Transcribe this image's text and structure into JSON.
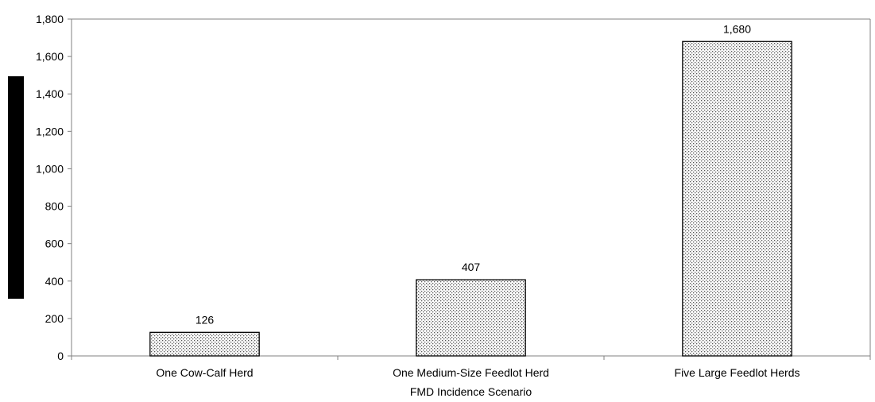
{
  "chart_data": {
    "type": "bar",
    "categories": [
      "One Cow-Calf Herd",
      "One Medium-Size Feedlot Herd",
      "Five Large Feedlot Herds"
    ],
    "values": [
      126,
      407,
      1680
    ],
    "data_labels": [
      "126",
      "407",
      "1,680"
    ],
    "xlabel": "FMD Incidence Scenario",
    "ylabel": "",
    "ylim": [
      0,
      1800
    ],
    "yticks": [
      0,
      200,
      400,
      600,
      800,
      1000,
      1200,
      1400,
      1600,
      1800
    ],
    "ytick_labels": [
      "0",
      "200",
      "400",
      "600",
      "800",
      "1,000",
      "1,200",
      "1,400",
      "1,600",
      "1,800"
    ],
    "grid": false,
    "legend": "none",
    "colors": {
      "bar_fill_pattern": "#ffffff",
      "bar_dots": "#555555",
      "bar_stroke": "#000000",
      "axis": "#808080",
      "ylabel_block": "#000000"
    }
  }
}
